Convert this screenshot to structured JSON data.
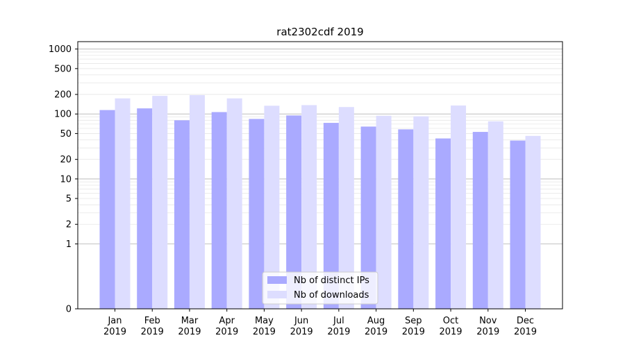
{
  "chart_data": {
    "type": "bar",
    "title": "rat2302cdf 2019",
    "xlabel": "",
    "ylabel": "",
    "yscale": "symlog",
    "ylim": [
      0,
      1300
    ],
    "y_ticks": [
      0,
      1,
      2,
      5,
      10,
      20,
      50,
      100,
      200,
      500,
      1000
    ],
    "grid": true,
    "legend_position": "bottom-center",
    "categories": [
      [
        "Jan",
        "2019"
      ],
      [
        "Feb",
        "2019"
      ],
      [
        "Mar",
        "2019"
      ],
      [
        "Apr",
        "2019"
      ],
      [
        "May",
        "2019"
      ],
      [
        "Jun",
        "2019"
      ],
      [
        "Jul",
        "2019"
      ],
      [
        "Aug",
        "2019"
      ],
      [
        "Sep",
        "2019"
      ],
      [
        "Oct",
        "2019"
      ],
      [
        "Nov",
        "2019"
      ],
      [
        "Dec",
        "2019"
      ]
    ],
    "series": [
      {
        "name": "Nb of distinct IPs",
        "color": "#aaaaff",
        "values": [
          115,
          122,
          80,
          107,
          84,
          95,
          73,
          64,
          58,
          42,
          53,
          39
        ]
      },
      {
        "name": "Nb of downloads",
        "color": "#ddddff",
        "values": [
          174,
          190,
          195,
          174,
          134,
          137,
          128,
          94,
          92,
          135,
          77,
          46
        ]
      }
    ]
  }
}
